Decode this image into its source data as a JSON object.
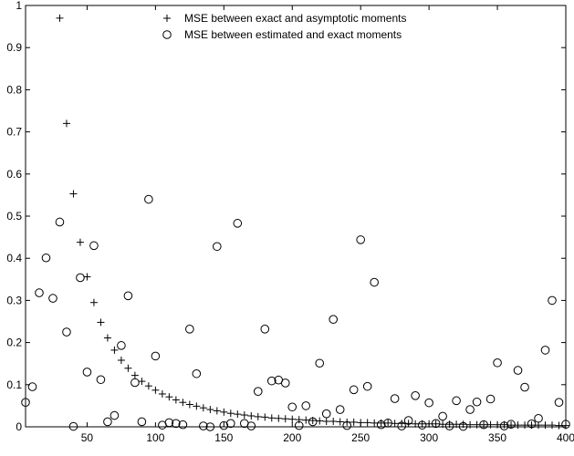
{
  "chart_data": {
    "type": "scatter",
    "title": "",
    "xlabel": "",
    "ylabel": "",
    "xlim": [
      5,
      400
    ],
    "ylim": [
      0,
      1
    ],
    "x_ticks": [
      50,
      100,
      150,
      200,
      250,
      300,
      350,
      400
    ],
    "y_ticks": [
      0,
      0.1,
      0.2,
      0.3,
      0.4,
      0.5,
      0.6,
      0.7,
      0.8,
      0.9,
      1
    ],
    "x_tick_labels": [
      "50",
      "100",
      "150",
      "200",
      "250",
      "300",
      "350",
      "400"
    ],
    "y_tick_labels": [
      "0",
      "0.1",
      "0.2",
      "0.3",
      "0.4",
      "0.5",
      "0.6",
      "0.7",
      "0.8",
      "0.9",
      "1"
    ],
    "grid": false,
    "legend_position": "top-center",
    "series": [
      {
        "name": "MSE between exact and asymptotic moments",
        "marker": "plus",
        "x": [
          30,
          35,
          40,
          45,
          50,
          55,
          60,
          65,
          70,
          75,
          80,
          85,
          90,
          95,
          100,
          105,
          110,
          115,
          120,
          125,
          130,
          135,
          140,
          145,
          150,
          155,
          160,
          165,
          170,
          175,
          180,
          185,
          190,
          195,
          200,
          205,
          210,
          215,
          220,
          225,
          230,
          235,
          240,
          245,
          250,
          255,
          260,
          265,
          270,
          275,
          280,
          285,
          290,
          295,
          300,
          305,
          310,
          315,
          320,
          325,
          330,
          335,
          340,
          345,
          350,
          355,
          360,
          365,
          370,
          375,
          380,
          385,
          390,
          395,
          400
        ],
        "y": [
          0.97,
          0.72,
          0.553,
          0.438,
          0.356,
          0.295,
          0.248,
          0.211,
          0.182,
          0.158,
          0.139,
          0.122,
          0.108,
          0.097,
          0.087,
          0.078,
          0.071,
          0.064,
          0.058,
          0.053,
          0.049,
          0.045,
          0.041,
          0.038,
          0.035,
          0.032,
          0.03,
          0.028,
          0.026,
          0.024,
          0.023,
          0.021,
          0.02,
          0.019,
          0.018,
          0.017,
          0.016,
          0.015,
          0.014,
          0.013,
          0.013,
          0.012,
          0.011,
          0.011,
          0.01,
          0.01,
          0.009,
          0.009,
          0.009,
          0.008,
          0.008,
          0.008,
          0.007,
          0.007,
          0.007,
          0.007,
          0.006,
          0.006,
          0.006,
          0.006,
          0.005,
          0.005,
          0.005,
          0.005,
          0.005,
          0.005,
          0.004,
          0.004,
          0.004,
          0.004,
          0.004,
          0.004,
          0.004,
          0.003,
          0.003
        ]
      },
      {
        "name": "MSE between estimated and exact moments",
        "marker": "circle",
        "x": [
          5,
          10,
          15,
          20,
          25,
          30,
          35,
          40,
          45,
          50,
          55,
          60,
          65,
          70,
          75,
          80,
          85,
          90,
          95,
          100,
          105,
          110,
          115,
          120,
          125,
          130,
          135,
          140,
          145,
          150,
          155,
          160,
          165,
          170,
          175,
          180,
          185,
          190,
          195,
          200,
          205,
          210,
          215,
          220,
          225,
          230,
          235,
          240,
          245,
          250,
          255,
          260,
          265,
          270,
          275,
          280,
          285,
          290,
          295,
          300,
          305,
          310,
          315,
          320,
          325,
          330,
          335,
          340,
          345,
          350,
          355,
          360,
          365,
          370,
          375,
          380,
          385,
          390,
          395,
          400
        ],
        "y": [
          0.058,
          0.095,
          0.318,
          0.401,
          0.305,
          0.486,
          0.225,
          0.001,
          0.354,
          0.13,
          0.43,
          0.112,
          0.012,
          0.027,
          0.193,
          0.311,
          0.105,
          0.012,
          0.54,
          0.168,
          0.004,
          0.01,
          0.008,
          0.005,
          0.232,
          0.126,
          0.002,
          0.0,
          0.428,
          0.003,
          0.008,
          0.483,
          0.008,
          0.002,
          0.084,
          0.232,
          0.109,
          0.111,
          0.104,
          0.047,
          0.003,
          0.05,
          0.012,
          0.151,
          0.031,
          0.255,
          0.041,
          0.003,
          0.088,
          0.444,
          0.096,
          0.343,
          0.005,
          0.009,
          0.067,
          0.002,
          0.015,
          0.074,
          0.004,
          0.057,
          0.008,
          0.025,
          0.002,
          0.062,
          0.001,
          0.041,
          0.059,
          0.005,
          0.066,
          0.152,
          0.002,
          0.006,
          0.134,
          0.094,
          0.007,
          0.02,
          0.182,
          0.3,
          0.058,
          0.006
        ]
      }
    ]
  }
}
